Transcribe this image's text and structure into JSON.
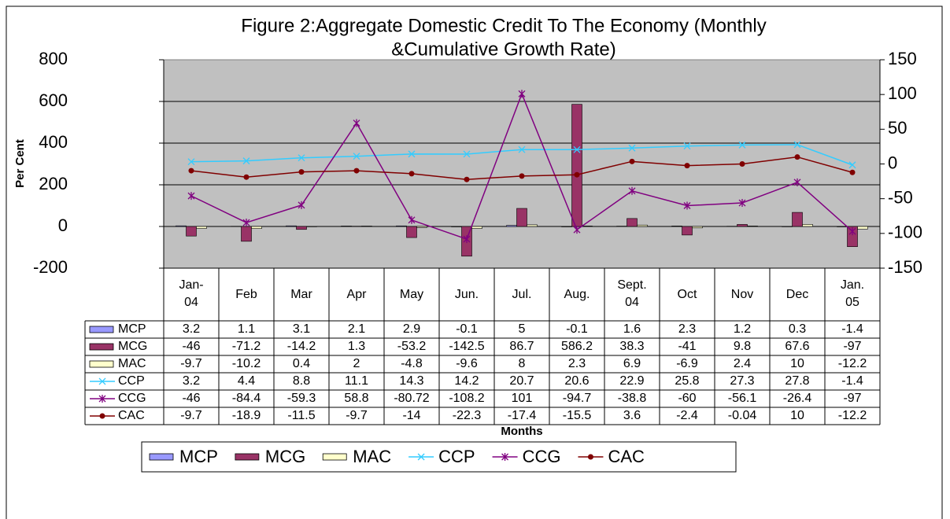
{
  "chart_data": {
    "type": "combo",
    "title": [
      "Figure 2:Aggregate Domestic Credit To The Economy (Monthly",
      "&Cumulative Growth Rate)"
    ],
    "y_label": "Per Cent",
    "x_label": "Months",
    "categories": [
      "Jan-04",
      "Feb",
      "Mar",
      "Apr",
      "May",
      "Jun.",
      "Jul.",
      "Aug.",
      "Sept. 04",
      "Oct",
      "Nov",
      "Dec",
      "Jan. 05"
    ],
    "ylim": [
      -200,
      800
    ],
    "yticks": [
      -200,
      0,
      200,
      400,
      600,
      800
    ],
    "y2lim": [
      -150,
      150
    ],
    "y2ticks": [
      -150,
      -100,
      -50,
      0,
      50,
      100,
      150
    ],
    "grid": true,
    "legend": "bottom",
    "plot_background": "#c0c0c0",
    "series": [
      {
        "name": "MCP",
        "type": "bar",
        "color": "#9999ff",
        "values": [
          3.2,
          1.1,
          3.1,
          2.1,
          2.9,
          -0.1,
          5,
          -0.1,
          1.6,
          2.3,
          1.2,
          0.3,
          -1.4
        ]
      },
      {
        "name": "MCG",
        "type": "bar",
        "color": "#993366",
        "values": [
          -46,
          -71.2,
          -14.2,
          1.3,
          -53.2,
          -142.5,
          86.7,
          586.2,
          38.3,
          -41,
          9.8,
          67.6,
          -97
        ]
      },
      {
        "name": "MAC",
        "type": "bar",
        "color": "#ffffcc",
        "values": [
          -9.7,
          -10.2,
          0.4,
          2,
          -4.8,
          -9.6,
          8,
          2.3,
          6.9,
          -6.9,
          2.4,
          10,
          -12.2
        ]
      },
      {
        "name": "CCP",
        "type": "line",
        "axis": "y2",
        "marker": "x",
        "color": "#33ccff",
        "values": [
          3.2,
          4.4,
          8.8,
          11.1,
          14.3,
          14.2,
          20.7,
          20.6,
          22.9,
          25.8,
          27.3,
          27.8,
          -1.4
        ]
      },
      {
        "name": "CCG",
        "type": "line",
        "axis": "y2",
        "marker": "star",
        "color": "#800080",
        "values": [
          -46,
          -84.4,
          -59.3,
          58.8,
          -80.72,
          -108.2,
          101,
          -94.7,
          -38.8,
          -60,
          -56.1,
          -26.4,
          -97
        ]
      },
      {
        "name": "CAC",
        "type": "line",
        "axis": "y2",
        "marker": "circle",
        "color": "#800000",
        "values": [
          -9.7,
          -18.9,
          -11.5,
          -9.7,
          -14,
          -22.3,
          -17.4,
          -15.5,
          3.6,
          -2.4,
          -0.04,
          10,
          -12.2
        ]
      }
    ]
  }
}
